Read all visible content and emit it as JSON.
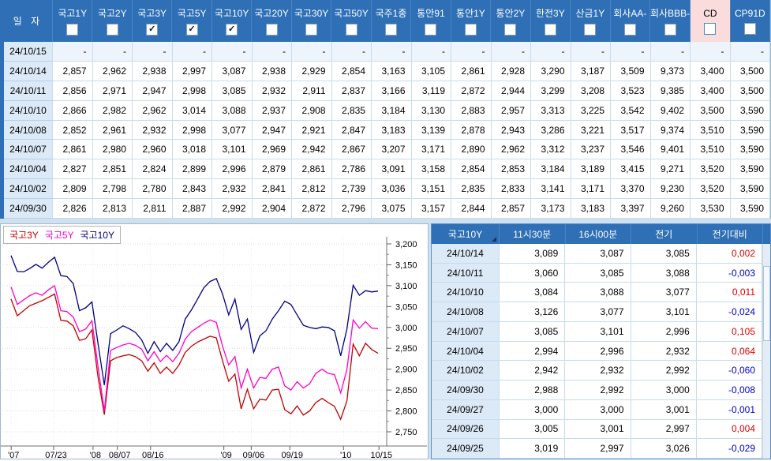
{
  "colors": {
    "header_blue": "#2e6fb5",
    "date_col_bg": "#dce9f6",
    "cd_highlight": "#fbdcdc",
    "grid_line": "#c9dbed",
    "positive_red": "#e00000",
    "negative_blue": "#0000cc",
    "series_3y": "#c00000",
    "series_5y": "#ff00cc",
    "series_10y": "#000080",
    "app_bg": "#cfe0ef"
  },
  "rates_table": {
    "date_header": "일 자",
    "columns": [
      {
        "label": "국고1Y",
        "checked": false,
        "highlight": false
      },
      {
        "label": "국고2Y",
        "checked": false,
        "highlight": false
      },
      {
        "label": "국고3Y",
        "checked": true,
        "highlight": false
      },
      {
        "label": "국고5Y",
        "checked": true,
        "highlight": false
      },
      {
        "label": "국고10Y",
        "checked": true,
        "highlight": false
      },
      {
        "label": "국고20Y",
        "checked": false,
        "highlight": false
      },
      {
        "label": "국고30Y",
        "checked": false,
        "highlight": false
      },
      {
        "label": "국고50Y",
        "checked": false,
        "highlight": false
      },
      {
        "label": "국주1종",
        "checked": false,
        "highlight": false
      },
      {
        "label": "통안91",
        "checked": false,
        "highlight": false
      },
      {
        "label": "통안1Y",
        "checked": false,
        "highlight": false
      },
      {
        "label": "통안2Y",
        "checked": false,
        "highlight": false
      },
      {
        "label": "한전3Y",
        "checked": false,
        "highlight": false
      },
      {
        "label": "산금1Y",
        "checked": false,
        "highlight": false
      },
      {
        "label": "회사AA-",
        "checked": false,
        "highlight": false
      },
      {
        "label": "회사BBB-",
        "checked": false,
        "highlight": false
      },
      {
        "label": "CD",
        "checked": false,
        "highlight": true
      },
      {
        "label": "CP91D",
        "checked": false,
        "highlight": false
      }
    ],
    "rows": [
      {
        "date": "24/10/15",
        "values": [
          "-",
          "-",
          "-",
          "-",
          "-",
          "-",
          "-",
          "-",
          "-",
          "-",
          "-",
          "-",
          "-",
          "-",
          "-",
          "-",
          "-",
          "-"
        ]
      },
      {
        "date": "24/10/14",
        "values": [
          "2,857",
          "2,962",
          "2,938",
          "2,997",
          "3,087",
          "2,938",
          "2,929",
          "2,854",
          "3,163",
          "3,105",
          "2,861",
          "2,928",
          "3,290",
          "3,187",
          "3,509",
          "9,373",
          "3,400",
          "3,500"
        ]
      },
      {
        "date": "24/10/11",
        "values": [
          "2,856",
          "2,971",
          "2,947",
          "2,998",
          "3,085",
          "2,932",
          "2,911",
          "2,837",
          "3,166",
          "3,119",
          "2,872",
          "2,944",
          "3,299",
          "3,208",
          "3,523",
          "9,385",
          "3,400",
          "3,500"
        ]
      },
      {
        "date": "24/10/10",
        "values": [
          "2,866",
          "2,982",
          "2,962",
          "3,014",
          "3,088",
          "2,937",
          "2,908",
          "2,835",
          "3,184",
          "3,130",
          "2,883",
          "2,957",
          "3,313",
          "3,225",
          "3,542",
          "9,402",
          "3,500",
          "3,590"
        ]
      },
      {
        "date": "24/10/08",
        "values": [
          "2,852",
          "2,961",
          "2,932",
          "2,998",
          "3,077",
          "2,947",
          "2,921",
          "2,847",
          "3,183",
          "3,139",
          "2,878",
          "2,943",
          "3,286",
          "3,221",
          "3,517",
          "9,374",
          "3,510",
          "3,590"
        ]
      },
      {
        "date": "24/10/07",
        "values": [
          "2,861",
          "2,980",
          "2,960",
          "3,018",
          "3,101",
          "2,969",
          "2,942",
          "2,867",
          "3,207",
          "3,171",
          "2,890",
          "2,962",
          "3,312",
          "3,237",
          "3,546",
          "9,401",
          "3,510",
          "3,590"
        ]
      },
      {
        "date": "24/10/04",
        "values": [
          "2,827",
          "2,851",
          "2,824",
          "2,899",
          "2,996",
          "2,879",
          "2,861",
          "2,786",
          "3,091",
          "3,158",
          "2,854",
          "2,853",
          "3,184",
          "3,189",
          "3,415",
          "9,271",
          "3,520",
          "3,590"
        ]
      },
      {
        "date": "24/10/02",
        "values": [
          "2,809",
          "2,798",
          "2,780",
          "2,843",
          "2,932",
          "2,841",
          "2,812",
          "2,739",
          "3,036",
          "3,151",
          "2,835",
          "2,833",
          "3,141",
          "3,171",
          "3,370",
          "9,230",
          "3,520",
          "3,590"
        ]
      },
      {
        "date": "24/09/30",
        "values": [
          "2,826",
          "2,813",
          "2,811",
          "2,887",
          "2,992",
          "2,904",
          "2,872",
          "2,796",
          "3,075",
          "3,157",
          "2,844",
          "2,857",
          "3,173",
          "3,183",
          "3,397",
          "9,260",
          "3,530",
          "3,590"
        ]
      }
    ]
  },
  "chart_data": {
    "type": "line",
    "legend": [
      {
        "label": "국고3Y",
        "color": "#c00000"
      },
      {
        "label": "국고5Y",
        "color": "#ff00cc"
      },
      {
        "label": "국고10Y",
        "color": "#000080"
      }
    ],
    "legend_position": "top-left",
    "grid": true,
    "ylim": [
      2.75,
      3.2
    ],
    "yticks": [
      {
        "label": "3,200",
        "v": 3.2
      },
      {
        "label": "3,150",
        "v": 3.15
      },
      {
        "label": "3,100",
        "v": 3.1
      },
      {
        "label": "3,050",
        "v": 3.05
      },
      {
        "label": "3,000",
        "v": 3.0
      },
      {
        "label": "2,950",
        "v": 2.95
      },
      {
        "label": "2,900",
        "v": 2.9
      },
      {
        "label": "2,850",
        "v": 2.85
      },
      {
        "label": "2,800",
        "v": 2.8
      },
      {
        "label": "2,750",
        "v": 2.75
      }
    ],
    "xticks": [
      {
        "label": "'07",
        "pos": 0.027
      },
      {
        "label": "07/23",
        "pos": 0.137
      },
      {
        "label": "'08",
        "pos": 0.239
      },
      {
        "label": "08/07",
        "pos": 0.302
      },
      {
        "label": "08/16",
        "pos": 0.388
      },
      {
        "label": "'09",
        "pos": 0.578
      },
      {
        "label": "09/06",
        "pos": 0.649
      },
      {
        "label": "09/19",
        "pos": 0.749
      },
      {
        "label": "'10",
        "pos": 0.888
      },
      {
        "label": "10/15",
        "pos": 0.98
      }
    ],
    "series": [
      {
        "name": "국고3Y",
        "color": "#c00000",
        "values": [
          3.068,
          3.028,
          3.04,
          3.052,
          3.058,
          3.064,
          3.072,
          3.08,
          3.017,
          3.015,
          3.004,
          2.969,
          2.973,
          2.994,
          2.88,
          2.791,
          2.92,
          2.928,
          2.932,
          2.935,
          2.93,
          2.92,
          2.895,
          2.915,
          2.89,
          2.905,
          2.89,
          2.91,
          2.94,
          2.955,
          2.965,
          2.972,
          2.979,
          2.975,
          2.92,
          2.871,
          2.888,
          2.805,
          2.852,
          2.805,
          2.828,
          2.826,
          2.85,
          2.852,
          2.803,
          2.793,
          2.812,
          2.79,
          2.8,
          2.82,
          2.83,
          2.82,
          2.811,
          2.78,
          2.824,
          2.96,
          2.932,
          2.962,
          2.947,
          2.938
        ]
      },
      {
        "name": "국고5Y",
        "color": "#ff00cc",
        "values": [
          3.097,
          3.055,
          3.066,
          3.076,
          3.083,
          3.077,
          3.09,
          3.1,
          3.04,
          3.038,
          3.025,
          2.99,
          2.996,
          3.016,
          2.905,
          2.8,
          2.945,
          2.952,
          2.958,
          2.962,
          2.957,
          2.948,
          2.92,
          2.942,
          2.918,
          2.933,
          2.918,
          2.938,
          2.972,
          2.99,
          3.0,
          3.01,
          3.018,
          3.012,
          2.955,
          2.91,
          2.93,
          2.855,
          2.9,
          2.855,
          2.88,
          2.878,
          2.9,
          2.905,
          2.86,
          2.85,
          2.87,
          2.855,
          2.865,
          2.89,
          2.9,
          2.89,
          2.887,
          2.843,
          2.899,
          3.018,
          2.998,
          3.014,
          2.998,
          2.997
        ]
      },
      {
        "name": "국고10Y",
        "color": "#000080",
        "values": [
          3.172,
          3.134,
          3.133,
          3.141,
          3.151,
          3.142,
          3.156,
          3.168,
          3.124,
          3.122,
          3.105,
          3.04,
          3.047,
          3.061,
          2.96,
          2.862,
          2.985,
          2.994,
          3.004,
          2.997,
          2.988,
          2.97,
          2.938,
          2.966,
          2.942,
          2.962,
          2.945,
          2.966,
          3.02,
          3.042,
          3.068,
          3.095,
          3.11,
          3.117,
          3.08,
          3.03,
          3.068,
          2.995,
          3.02,
          2.94,
          2.98,
          2.992,
          3.02,
          3.04,
          3.063,
          3.055,
          3.03,
          3.005,
          3.0,
          2.997,
          3.001,
          3.0,
          2.992,
          2.932,
          2.996,
          3.101,
          3.077,
          3.088,
          3.085,
          3.087
        ]
      }
    ]
  },
  "detail_table": {
    "headers": [
      "국고10Y",
      "11시30분",
      "16시00분",
      "전기",
      "전기대비"
    ],
    "rows": [
      {
        "date": "24/10/14",
        "t1130": "3,089",
        "t1600": "3,087",
        "prev": "3,085",
        "chg": "0,002",
        "dir": "up"
      },
      {
        "date": "24/10/11",
        "t1130": "3,060",
        "t1600": "3,085",
        "prev": "3,088",
        "chg": "-0,003",
        "dir": "down"
      },
      {
        "date": "24/10/10",
        "t1130": "3,084",
        "t1600": "3,088",
        "prev": "3,077",
        "chg": "0,011",
        "dir": "up"
      },
      {
        "date": "24/10/08",
        "t1130": "3,126",
        "t1600": "3,077",
        "prev": "3,101",
        "chg": "-0,024",
        "dir": "down"
      },
      {
        "date": "24/10/07",
        "t1130": "3,085",
        "t1600": "3,101",
        "prev": "2,996",
        "chg": "0,105",
        "dir": "up"
      },
      {
        "date": "24/10/04",
        "t1130": "2,994",
        "t1600": "2,996",
        "prev": "2,932",
        "chg": "0,064",
        "dir": "up"
      },
      {
        "date": "24/10/02",
        "t1130": "2,942",
        "t1600": "2,932",
        "prev": "2,992",
        "chg": "-0,060",
        "dir": "down"
      },
      {
        "date": "24/09/30",
        "t1130": "2,988",
        "t1600": "2,992",
        "prev": "3,000",
        "chg": "-0,008",
        "dir": "down"
      },
      {
        "date": "24/09/27",
        "t1130": "3,000",
        "t1600": "3,000",
        "prev": "3,001",
        "chg": "-0,001",
        "dir": "down"
      },
      {
        "date": "24/09/26",
        "t1130": "3,005",
        "t1600": "3,001",
        "prev": "2,997",
        "chg": "0,004",
        "dir": "up"
      },
      {
        "date": "24/09/25",
        "t1130": "3,019",
        "t1600": "2,997",
        "prev": "3,026",
        "chg": "-0,029",
        "dir": "down"
      }
    ]
  }
}
